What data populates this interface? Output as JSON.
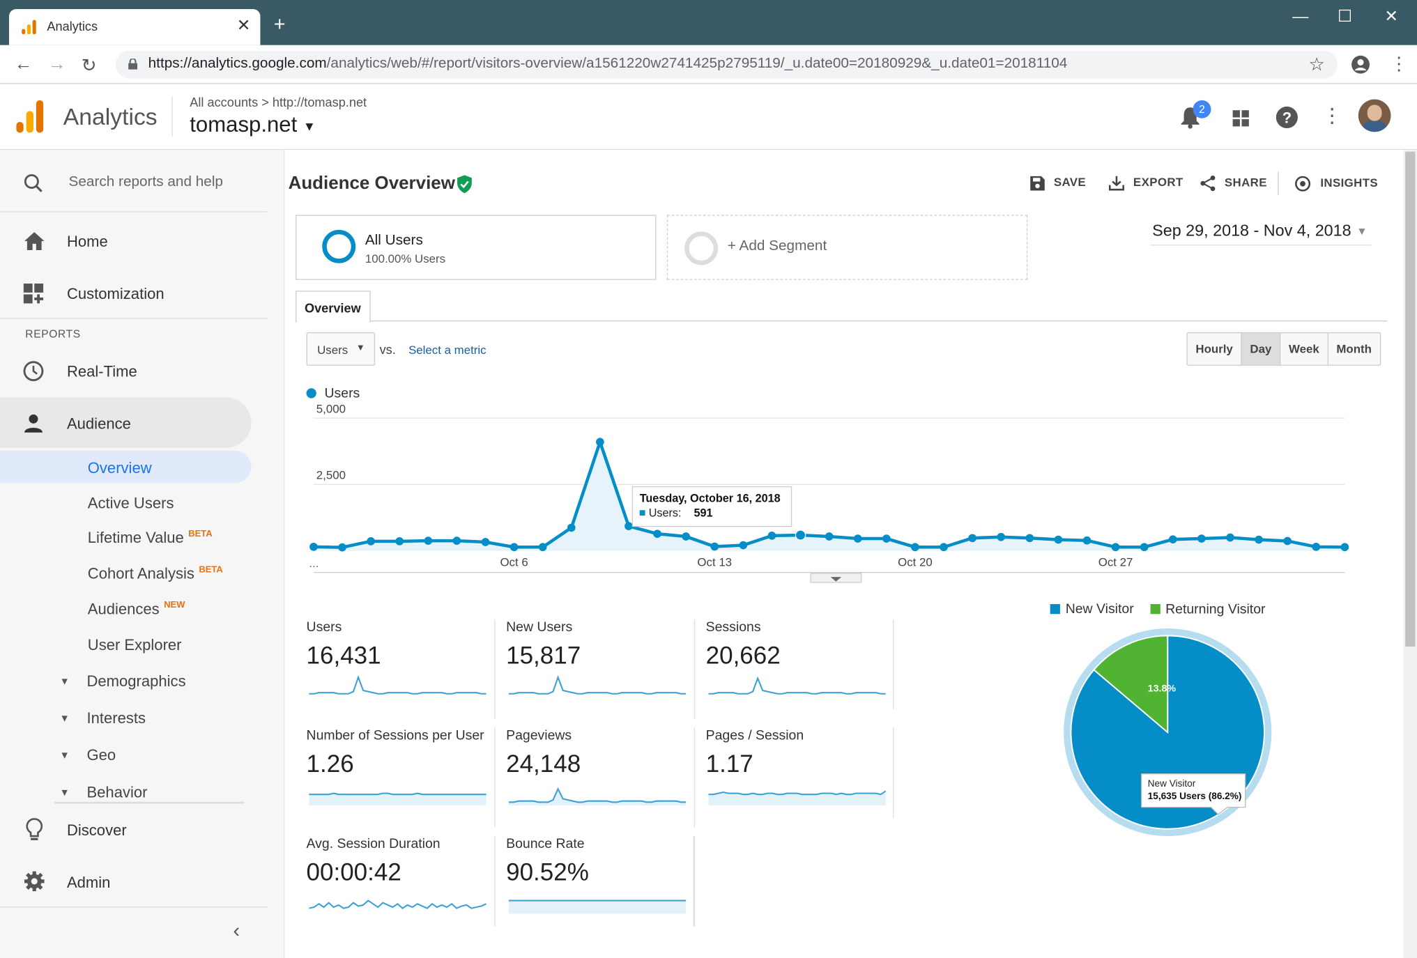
{
  "browser": {
    "tab_title": "Analytics",
    "url_host": "https://analytics.google.com",
    "url_path": "/analytics/web/#/report/visitors-overview/a1561220w2741425p2795119/_u.date00=20180929&_u.date01=20181104"
  },
  "header": {
    "app_name": "Analytics",
    "crumb_accounts": "All accounts",
    "crumb_sep": ">",
    "crumb_site": "http://tomasp.net",
    "property": "tomasp.net",
    "notification_count": "2"
  },
  "sidebar": {
    "search_placeholder": "Search reports and help",
    "home": "Home",
    "customization": "Customization",
    "reports_heading": "REPORTS",
    "realtime": "Real-Time",
    "audience": "Audience",
    "overview": "Overview",
    "active_users": "Active Users",
    "lifetime_value": "Lifetime Value",
    "beta": "BETA",
    "cohort_analysis": "Cohort Analysis",
    "audiences": "Audiences",
    "new": "NEW",
    "user_explorer": "User Explorer",
    "demographics": "Demographics",
    "interests": "Interests",
    "geo": "Geo",
    "behavior": "Behavior",
    "discover": "Discover",
    "admin": "Admin"
  },
  "toolbar": {
    "page_title": "Audience Overview",
    "save": "SAVE",
    "export": "EXPORT",
    "share": "SHARE",
    "insights": "INSIGHTS"
  },
  "segments": {
    "all_users": "All Users",
    "all_users_sub": "100.00% Users",
    "add_segment": "+ Add Segment"
  },
  "date_range": "Sep 29, 2018 - Nov 4, 2018",
  "overview_tab": "Overview",
  "metric_picker": {
    "selected": "Users",
    "vs": "vs.",
    "select_metric": "Select a metric"
  },
  "granularity": [
    "Hourly",
    "Day",
    "Week",
    "Month"
  ],
  "granularity_selected": "Day",
  "chart_data": [
    {
      "type": "area",
      "series": [
        {
          "name": "Users",
          "values": [
            150,
            130,
            360,
            360,
            380,
            380,
            330,
            140,
            140,
            870,
            4100,
            930,
            640,
            540,
            160,
            210,
            570,
            591,
            540,
            460,
            460,
            140,
            140,
            480,
            520,
            480,
            420,
            390,
            140,
            140,
            430,
            460,
            500,
            420,
            370,
            150,
            140
          ]
        }
      ],
      "x_start_label": "...",
      "x_ticks": [
        "Oct 6",
        "Oct 13",
        "Oct 20",
        "Oct 27"
      ],
      "x_tick_index": [
        7,
        14,
        21,
        28
      ],
      "y_ticks": [
        "5,000",
        "2,500"
      ],
      "y_tick_values": [
        5000,
        2500
      ],
      "ylim": [
        0,
        5000
      ],
      "legend": "Users",
      "color": "#058dc7",
      "tooltip": {
        "title": "Tuesday, October 16, 2018",
        "label": "Users:",
        "value": "591",
        "index": 17
      }
    },
    {
      "type": "pie",
      "legend": [
        "New Visitor",
        "Returning Visitor"
      ],
      "values": [
        86.2,
        13.8
      ],
      "colors": [
        "#058dc7",
        "#50b432"
      ],
      "slice_label": "13.8%",
      "tooltip": {
        "title": "New Visitor",
        "value": "15,635 Users (86.2%)"
      }
    }
  ],
  "metrics": [
    {
      "label": "Users",
      "value": "16,431",
      "spark": [
        3,
        3,
        4,
        4,
        4,
        4,
        3,
        3,
        3,
        5,
        18,
        6,
        5,
        4,
        3,
        3,
        4,
        4,
        4,
        4,
        4,
        3,
        3,
        4,
        4,
        4,
        4,
        4,
        3,
        3,
        4,
        4,
        4,
        4,
        4,
        3,
        3
      ]
    },
    {
      "label": "New Users",
      "value": "15,817",
      "spark": [
        3,
        3,
        4,
        4,
        4,
        4,
        3,
        3,
        3,
        5,
        18,
        6,
        5,
        4,
        3,
        3,
        4,
        4,
        4,
        4,
        4,
        3,
        3,
        4,
        4,
        4,
        4,
        4,
        3,
        3,
        4,
        4,
        4,
        4,
        4,
        3,
        3
      ]
    },
    {
      "label": "Sessions",
      "value": "20,662",
      "spark": [
        3,
        3,
        4,
        4,
        4,
        4,
        3,
        3,
        3,
        5,
        17,
        6,
        5,
        4,
        3,
        3,
        4,
        4,
        4,
        4,
        4,
        3,
        3,
        4,
        4,
        4,
        4,
        4,
        3,
        3,
        4,
        4,
        4,
        4,
        4,
        3,
        3
      ]
    },
    {
      "label": "Number of Sessions per User",
      "value": "1.26",
      "spark": [
        10,
        10,
        10,
        10,
        10,
        11,
        10,
        10,
        10,
        10,
        10,
        10,
        10,
        10,
        10,
        11,
        11,
        10,
        10,
        10,
        10,
        10,
        11,
        10,
        10,
        10,
        10,
        10,
        10,
        10,
        10,
        10,
        10,
        10,
        10,
        10,
        10
      ],
      "fill": true
    },
    {
      "label": "Pageviews",
      "value": "24,148",
      "spark": [
        3,
        3,
        4,
        4,
        4,
        4,
        3,
        3,
        3,
        5,
        15,
        6,
        5,
        4,
        3,
        3,
        4,
        4,
        4,
        4,
        4,
        3,
        3,
        4,
        4,
        4,
        4,
        4,
        3,
        3,
        4,
        4,
        4,
        4,
        4,
        3,
        3
      ],
      "fill": true
    },
    {
      "label": "Pages / Session",
      "value": "1.17",
      "spark": [
        10,
        10,
        11,
        12,
        11,
        11,
        11,
        10,
        10,
        11,
        10,
        10,
        11,
        11,
        10,
        10,
        11,
        11,
        11,
        10,
        10,
        10,
        10,
        11,
        11,
        11,
        10,
        11,
        10,
        10,
        11,
        11,
        11,
        11,
        11,
        10,
        13
      ],
      "fill": true
    },
    {
      "label": "Avg. Session Duration",
      "value": "00:00:42",
      "spark": [
        5,
        6,
        9,
        6,
        10,
        6,
        8,
        5,
        6,
        10,
        7,
        8,
        12,
        9,
        6,
        10,
        8,
        6,
        9,
        5,
        8,
        6,
        9,
        7,
        5,
        9,
        6,
        8,
        6,
        9,
        5,
        7,
        8,
        5,
        6,
        7,
        9
      ]
    },
    {
      "label": "Bounce Rate",
      "value": "90.52%",
      "spark": [
        12,
        12,
        12,
        12,
        12,
        12,
        12,
        12,
        12,
        12,
        12,
        12,
        12,
        12,
        12,
        12,
        12,
        12,
        12,
        12,
        12,
        12,
        12,
        12,
        12,
        12,
        12,
        12,
        12,
        12,
        12,
        12,
        12,
        12,
        12,
        12,
        12
      ],
      "fill": true
    }
  ]
}
